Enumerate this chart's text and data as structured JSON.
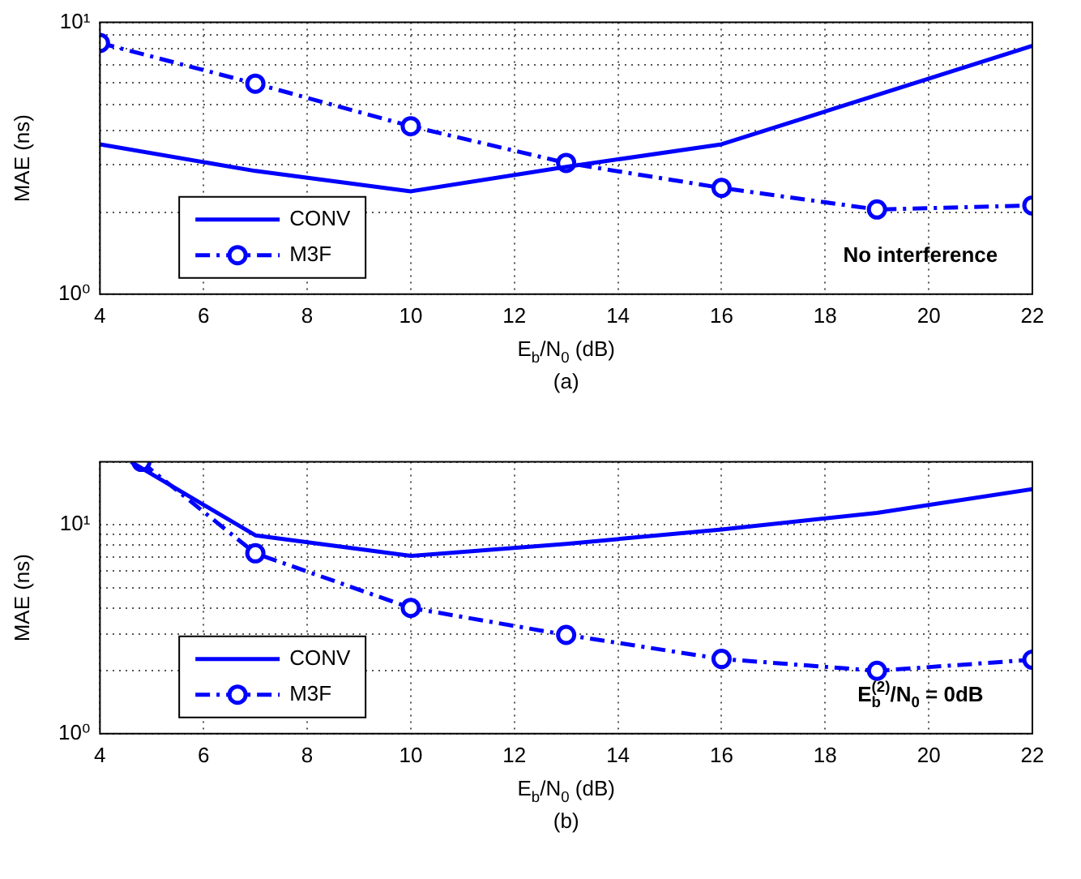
{
  "chart_data": [
    {
      "type": "line",
      "xlabel": "E$_{b}$/N$_{0}$ (dB)",
      "ylabel": "MAE (ns)",
      "annotations": [
        "No interference",
        "(a)"
      ],
      "x": [
        4,
        7,
        10,
        13,
        16,
        19,
        22
      ],
      "series": [
        {
          "name": "CONV",
          "color": "#0000ff",
          "marker": "none",
          "line_style": "solid",
          "x": [
            4,
            7,
            10,
            13,
            16,
            22
          ],
          "values": [
            3.56,
            2.84,
            2.39,
            2.94,
            3.56,
            8.2
          ]
        },
        {
          "name": "M3F",
          "color": "#0000ff",
          "marker": "circle",
          "line_style": "dashdot",
          "values": [
            8.4,
            5.95,
            4.15,
            3.04,
            2.46,
            2.05,
            2.12
          ]
        }
      ],
      "log": "y",
      "xlim": [
        4,
        22
      ],
      "xticks": [
        4,
        6,
        8,
        10,
        12,
        14,
        16,
        18,
        20,
        22
      ],
      "ylim": [
        1,
        10
      ],
      "yticks": [
        {
          "value": 1,
          "label": "10⁰"
        },
        {
          "value": 2,
          "label": null
        },
        {
          "value": 3,
          "label": null
        },
        {
          "value": 4,
          "label": null
        },
        {
          "value": 5,
          "label": null
        },
        {
          "value": 6,
          "label": null
        },
        {
          "value": 7,
          "label": null
        },
        {
          "value": 8,
          "label": null
        },
        {
          "value": 9,
          "label": null
        },
        {
          "value": 10,
          "label": "10¹"
        }
      ],
      "grid": true,
      "legend": "bottom left"
    },
    {
      "type": "line",
      "xlabel": "E$_{b}$/N$_{0}$ (dB)",
      "ylabel": "MAE (ns)",
      "annotations": [
        "E$_{b}$$^{(2)}$/N$_{0}$ = 0dB",
        "(b)"
      ],
      "series": [
        {
          "name": "CONV",
          "color": "#0000ff",
          "marker": "none",
          "line_style": "solid",
          "x": [
            4.6,
            7,
            10,
            13,
            16,
            19,
            22
          ],
          "values": [
            20,
            8.9,
            7.1,
            8.1,
            9.5,
            11.4,
            14.8
          ]
        },
        {
          "name": "M3F",
          "color": "#0000ff",
          "marker": "circle",
          "line_style": "dashdot",
          "x": [
            4.8,
            7,
            10,
            13,
            16,
            19,
            22
          ],
          "values": [
            20,
            7.3,
            4.0,
            2.97,
            2.28,
            2.0,
            2.26
          ]
        }
      ],
      "log": "y",
      "xlim": [
        4,
        22
      ],
      "xticks": [
        4,
        6,
        8,
        10,
        12,
        14,
        16,
        18,
        20,
        22
      ],
      "ylim": [
        1,
        20
      ],
      "yticks": [
        {
          "value": 1,
          "label": "10⁰"
        },
        {
          "value": 2,
          "label": null
        },
        {
          "value": 3,
          "label": null
        },
        {
          "value": 4,
          "label": null
        },
        {
          "value": 5,
          "label": null
        },
        {
          "value": 6,
          "label": null
        },
        {
          "value": 7,
          "label": null
        },
        {
          "value": 8,
          "label": null
        },
        {
          "value": 9,
          "label": null
        },
        {
          "value": 10,
          "label": "10¹"
        },
        {
          "value": 20,
          "label": null
        }
      ],
      "grid": true,
      "legend": "bottom left"
    }
  ]
}
